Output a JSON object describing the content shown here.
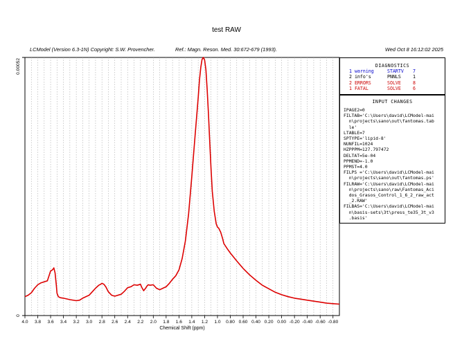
{
  "header": {
    "title": "test RAW",
    "program": "LCModel (Version 6.3-1N) Copyright: S.W. Provencher.",
    "reference": "Ref.: Magn. Reson. Med. 30:672-679 (1993).",
    "date": "Wed Oct  8 16:12:02 2025"
  },
  "colors": {
    "curve": "#dd0000",
    "grid": "#aaaaaa",
    "warning": "#0000cc",
    "error": "#cc0000"
  },
  "diagnostics": {
    "title": "DIAGNOSTICS",
    "rows": [
      {
        "count": "1 warning",
        "routine": "STARTV",
        "code": "7",
        "color": "#0000cc"
      },
      {
        "count": "2 info's",
        "routine": "PNNLS",
        "code": "1",
        "color": "#000000"
      },
      {
        "count": "2 ERRORS",
        "routine": "SOLVE",
        "code": "8",
        "color": "#cc0000"
      },
      {
        "count": "1 FATAL",
        "routine": "SOLVE",
        "code": "6",
        "color": "#cc0000"
      }
    ]
  },
  "input_changes": {
    "title": "INPUT CHANGES",
    "lines": [
      "IPAGE2=0",
      "FILTAB='C:\\Users\\david\\LCModel-mai",
      "  n\\projects\\sano\\out\\fantomas.tab",
      "  le'",
      "LTABLE=7",
      "SPTYPE='lipid-8'",
      "NUNFIL=1024",
      "HZPPPM=127.797472",
      "DELTAT=5e-04",
      "PPMEND=-1.0",
      "PPMST=4.0",
      "FILPS ='C:\\Users\\david\\LCModel-mai",
      "  n\\projects\\sano\\out\\fantomas.ps'",
      "FILRAW='C:\\Users\\david\\LCModel-mai",
      "  n\\projects\\sano\\raw\\Fantomas_Aci",
      "  dos_Grasos_Control_1_6_2_raw_act",
      "  _2.RAW'",
      "FILBAS='C:\\Users\\david\\LCModel-mai",
      "  n\\basis-sets\\3t\\press_te35_3t_v3",
      "  .basis'"
    ]
  },
  "chart_data": {
    "type": "line",
    "xlabel": "Chemical Shift (ppm)",
    "ylabel": "",
    "xlim": [
      4.0,
      -0.9
    ],
    "ylim": [
      0,
      0.00052
    ],
    "x_direction": "reversed",
    "xticks": [
      "4.0",
      "3.8",
      "3.6",
      "3.4",
      "3.2",
      "3.0",
      "2.8",
      "2.6",
      "2.4",
      "2.2",
      "2.0",
      "1.8",
      "1.6",
      "1.4",
      "1.2",
      "1.0",
      "0.80",
      "0.60",
      "0.40",
      "0.20",
      "0.00",
      "-0.20",
      "-0.40",
      "-0.60",
      "-0.80"
    ],
    "xtick_values": [
      4.0,
      3.8,
      3.6,
      3.4,
      3.2,
      3.0,
      2.8,
      2.6,
      2.4,
      2.2,
      2.0,
      1.8,
      1.6,
      1.4,
      1.2,
      1.0,
      0.8,
      0.6,
      0.4,
      0.2,
      0.0,
      -0.2,
      -0.4,
      -0.6,
      -0.8
    ],
    "yticks": [
      "0",
      "0.00052"
    ],
    "ytick_values": [
      0,
      0.00052
    ],
    "grid": "vertical dashed",
    "series": [
      {
        "color": "#dd0000",
        "x": [
          4.0,
          3.95,
          3.9,
          3.85,
          3.8,
          3.75,
          3.7,
          3.65,
          3.62,
          3.6,
          3.58,
          3.56,
          3.55,
          3.53,
          3.51,
          3.5,
          3.48,
          3.45,
          3.4,
          3.3,
          3.2,
          3.15,
          3.1,
          3.0,
          2.95,
          2.9,
          2.85,
          2.82,
          2.8,
          2.77,
          2.74,
          2.7,
          2.65,
          2.6,
          2.5,
          2.45,
          2.4,
          2.35,
          2.3,
          2.25,
          2.2,
          2.18,
          2.15,
          2.12,
          2.1,
          2.08,
          2.05,
          2.0,
          1.95,
          1.9,
          1.85,
          1.8,
          1.75,
          1.7,
          1.65,
          1.6,
          1.55,
          1.5,
          1.45,
          1.4,
          1.35,
          1.3,
          1.28,
          1.26,
          1.24,
          1.22,
          1.2,
          1.18,
          1.16,
          1.14,
          1.12,
          1.1,
          1.08,
          1.05,
          1.02,
          1.0,
          0.98,
          0.95,
          0.92,
          0.9,
          0.85,
          0.8,
          0.7,
          0.6,
          0.5,
          0.4,
          0.3,
          0.2,
          0.1,
          0.0,
          -0.1,
          -0.2,
          -0.3,
          -0.4,
          -0.5,
          -0.6,
          -0.7,
          -0.8,
          -0.9
        ],
        "y": [
          3.8e-05,
          4.1e-05,
          4.6e-05,
          5.5e-05,
          6.2e-05,
          6.6e-05,
          6.8e-05,
          7e-05,
          8.2e-05,
          9e-05,
          9.1e-05,
          9.4e-05,
          9.6e-05,
          8.6e-05,
          6e-05,
          4.5e-05,
          3.8e-05,
          3.6e-05,
          3.5e-05,
          3.2e-05,
          3e-05,
          3.1e-05,
          3.5e-05,
          4.1e-05,
          4.8e-05,
          5.5e-05,
          6.1e-05,
          6.3e-05,
          6.5e-05,
          6.3e-05,
          5.8e-05,
          4.8e-05,
          4.1e-05,
          3.9e-05,
          4.3e-05,
          4.9e-05,
          5.6e-05,
          5.8e-05,
          6.2e-05,
          6.1e-05,
          6.3e-05,
          5.7e-05,
          5e-05,
          5.5e-05,
          5.9e-05,
          6.2e-05,
          6.1e-05,
          6.2e-05,
          5.5e-05,
          5.2e-05,
          5.5e-05,
          5.8e-05,
          6.5e-05,
          7.3e-05,
          8e-05,
          9.2e-05,
          0.000115,
          0.00015,
          0.000205,
          0.00028,
          0.00036,
          0.00044,
          0.000475,
          0.0005,
          0.000516,
          0.00052,
          0.000515,
          0.000495,
          0.000455,
          0.000405,
          0.00035,
          0.000295,
          0.00025,
          0.00021,
          0.000185,
          0.000178,
          0.000176,
          0.000168,
          0.000155,
          0.000145,
          0.000135,
          0.000126,
          0.00011,
          9.5e-05,
          8.2e-05,
          7.1e-05,
          6.1e-05,
          5.4e-05,
          4.7e-05,
          4.2e-05,
          3.8e-05,
          3.5e-05,
          3.3e-05,
          3.1e-05,
          2.9e-05,
          2.7e-05,
          2.5e-05,
          2.4e-05,
          2.3e-05
        ]
      }
    ]
  }
}
